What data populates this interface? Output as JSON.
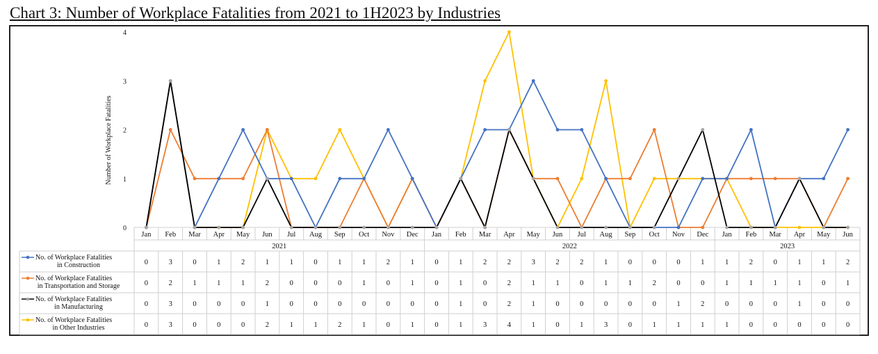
{
  "title": "Chart 3: Number of Workplace Fatalities from 2021 to 1H2023 by Industries",
  "chart_data": {
    "type": "line",
    "ylabel": "Number of Workplace Fatalities",
    "ylim": [
      0,
      4
    ],
    "yticks": [
      0,
      1,
      2,
      3,
      4
    ],
    "grid": false,
    "legend_placement": "data-table-left",
    "categories": [
      "Jan",
      "Feb",
      "Mar",
      "Apr",
      "May",
      "Jun",
      "Jul",
      "Aug",
      "Sep",
      "Oct",
      "Nov",
      "Dec",
      "Jan",
      "Feb",
      "Mar",
      "Apr",
      "May",
      "Jun",
      "Jul",
      "Aug",
      "Sep",
      "Oct",
      "Nov",
      "Dec",
      "Jan",
      "Feb",
      "Mar",
      "Apr",
      "May",
      "Jun"
    ],
    "years": [
      {
        "label": "2021",
        "count": 12
      },
      {
        "label": "2022",
        "count": 12
      },
      {
        "label": "2023",
        "count": 6
      }
    ],
    "series": [
      {
        "name": "No. of Workplace Fatalities in Construction",
        "legend_lines": [
          "No. of Workplace Fatalities",
          "in Construction"
        ],
        "color": "#4472C4",
        "values": [
          0,
          3,
          0,
          1,
          2,
          1,
          1,
          0,
          1,
          1,
          2,
          1,
          0,
          1,
          2,
          2,
          3,
          2,
          2,
          1,
          0,
          0,
          0,
          1,
          1,
          2,
          0,
          1,
          1,
          2
        ]
      },
      {
        "name": "No. of Workplace Fatalities in Transportation and Storage",
        "legend_lines": [
          "No. of Workplace Fatalities",
          "in Transportation and Storage"
        ],
        "color": "#ED7D31",
        "values": [
          0,
          2,
          1,
          1,
          1,
          2,
          0,
          0,
          0,
          1,
          0,
          1,
          0,
          1,
          0,
          2,
          1,
          1,
          0,
          1,
          1,
          2,
          0,
          0,
          1,
          1,
          1,
          1,
          0,
          1
        ]
      },
      {
        "name": "No. of Workplace Fatalities in Manufacturing",
        "legend_lines": [
          "No. of Workplace Fatalities",
          "in Manufacturing"
        ],
        "color": "#000000",
        "marker_color": "#A5A5A5",
        "values": [
          0,
          3,
          0,
          0,
          0,
          1,
          0,
          0,
          0,
          0,
          0,
          0,
          0,
          1,
          0,
          2,
          1,
          0,
          0,
          0,
          0,
          0,
          1,
          2,
          0,
          0,
          0,
          1,
          0,
          0
        ]
      },
      {
        "name": "No. of Workplace Fatalities in Other Industries",
        "legend_lines": [
          "No. of Workplace Fatalities",
          "in Other Industries"
        ],
        "color": "#FFC000",
        "values": [
          0,
          3,
          0,
          0,
          0,
          2,
          1,
          1,
          2,
          1,
          0,
          1,
          0,
          1,
          3,
          4,
          1,
          0,
          1,
          3,
          0,
          1,
          1,
          1,
          1,
          0,
          0,
          0,
          0,
          0
        ]
      }
    ]
  }
}
